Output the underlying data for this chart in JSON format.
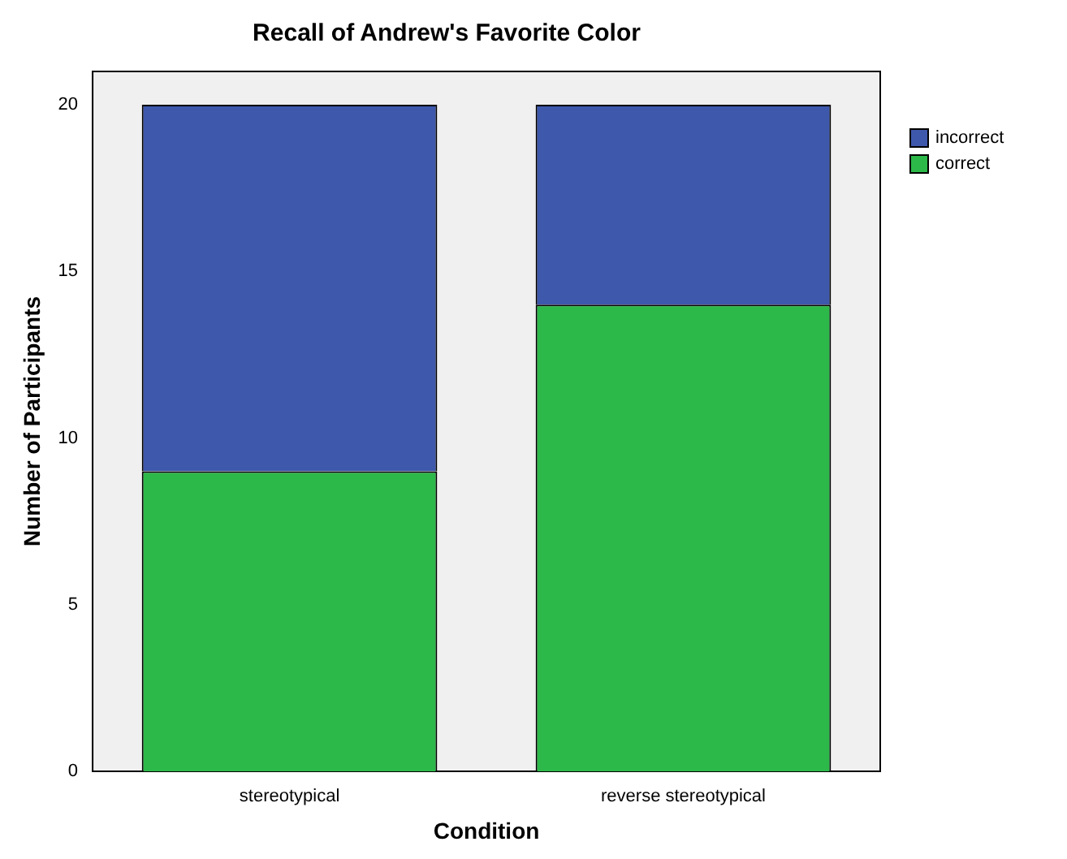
{
  "chart_data": {
    "type": "bar",
    "title": "Recall of Andrew's Favorite Color",
    "xlabel": "Condition",
    "ylabel": "Number of Participants",
    "categories": [
      "stereotypical",
      "reverse stereotypical"
    ],
    "stacked": true,
    "series": [
      {
        "name": "correct",
        "color": "#2db84a",
        "values": [
          9,
          14
        ]
      },
      {
        "name": "incorrect",
        "color": "#3e58ac",
        "values": [
          11,
          6
        ]
      }
    ],
    "ylim": [
      0,
      21
    ],
    "yticks": [
      0,
      5,
      10,
      15,
      20
    ],
    "grid": false,
    "legend": "top right"
  }
}
